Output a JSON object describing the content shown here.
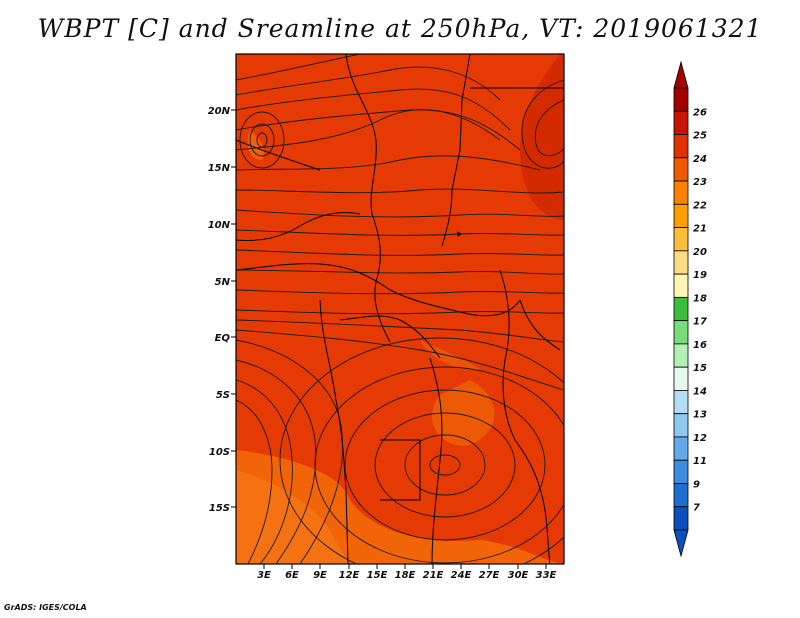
{
  "title": "WBPT [C] and Sreamline at 250hPa, VT: 2019061321",
  "credit": "GrADS: IGES/COLA",
  "map": {
    "lat_labels": [
      "20N",
      "15N",
      "10N",
      "5N",
      "EQ",
      "5S",
      "10S",
      "15S"
    ],
    "lon_labels": [
      "3E",
      "6E",
      "9E",
      "12E",
      "15E",
      "18E",
      "21E",
      "24E",
      "27E",
      "30E",
      "33E"
    ]
  },
  "colorbar": {
    "labels": [
      "26",
      "25",
      "24",
      "23",
      "22",
      "21",
      "20",
      "19",
      "18",
      "17",
      "16",
      "15",
      "14",
      "13",
      "12",
      "11",
      "9",
      "7"
    ],
    "colors": [
      "#a50000",
      "#c81400",
      "#e03200",
      "#f05a00",
      "#fa8200",
      "#fca000",
      "#fcbe3c",
      "#fcdc82",
      "#fff5b4",
      "#3cbe3c",
      "#78dc78",
      "#b4f0b4",
      "#e6faf0",
      "#b4dcf5",
      "#8cc8f0",
      "#64aaeb",
      "#3c8ce1",
      "#1e6ed2",
      "#0a50be"
    ]
  }
}
